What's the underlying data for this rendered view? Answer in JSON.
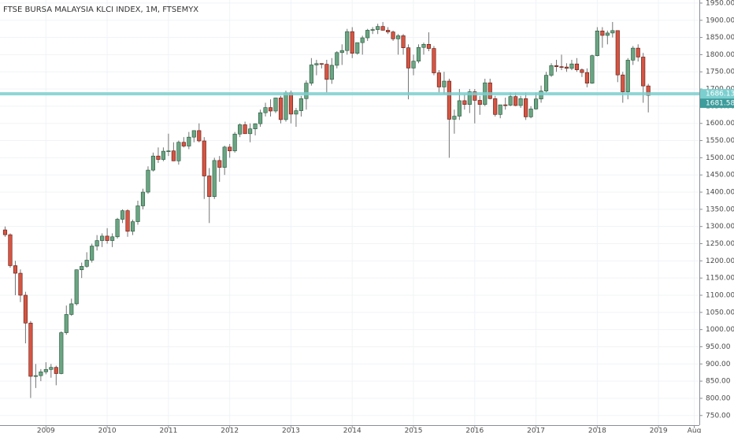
{
  "chart_data": {
    "type": "candlestick",
    "title": "FTSE BURSA MALAYSIA KLCI INDEX, 1M, FTSEMYX",
    "x": [
      "2008-05",
      "2008-06",
      "2008-07",
      "2008-08",
      "2008-09",
      "2008-10",
      "2008-11",
      "2008-12",
      "2009-01",
      "2009-02",
      "2009-03",
      "2009-04",
      "2009-05",
      "2009-06",
      "2009-07",
      "2009-08",
      "2009-09",
      "2009-10",
      "2009-11",
      "2009-12",
      "2010-01",
      "2010-02",
      "2010-03",
      "2010-04",
      "2010-05",
      "2010-06",
      "2010-07",
      "2010-08",
      "2010-09",
      "2010-10",
      "2010-11",
      "2010-12",
      "2011-01",
      "2011-02",
      "2011-03",
      "2011-04",
      "2011-05",
      "2011-06",
      "2011-07",
      "2011-08",
      "2011-09",
      "2011-10",
      "2011-11",
      "2011-12",
      "2012-01",
      "2012-02",
      "2012-03",
      "2012-04",
      "2012-05",
      "2012-06",
      "2012-07",
      "2012-08",
      "2012-09",
      "2012-10",
      "2012-11",
      "2012-12",
      "2013-01",
      "2013-02",
      "2013-03",
      "2013-04",
      "2013-05",
      "2013-06",
      "2013-07",
      "2013-08",
      "2013-09",
      "2013-10",
      "2013-11",
      "2013-12",
      "2014-01",
      "2014-02",
      "2014-03",
      "2014-04",
      "2014-05",
      "2014-06",
      "2014-07",
      "2014-08",
      "2014-09",
      "2014-10",
      "2014-11",
      "2014-12",
      "2015-01",
      "2015-02",
      "2015-03",
      "2015-04",
      "2015-05",
      "2015-06",
      "2015-07",
      "2015-08",
      "2015-09",
      "2015-10",
      "2015-11",
      "2015-12",
      "2016-01",
      "2016-02",
      "2016-03",
      "2016-04",
      "2016-05",
      "2016-06",
      "2016-07",
      "2016-08",
      "2016-09",
      "2016-10",
      "2016-11",
      "2016-12",
      "2017-01",
      "2017-02",
      "2017-03",
      "2017-04",
      "2017-05",
      "2017-06",
      "2017-07",
      "2017-08",
      "2017-09",
      "2017-10",
      "2017-11",
      "2017-12",
      "2018-01",
      "2018-02",
      "2018-03",
      "2018-04",
      "2018-05",
      "2018-06",
      "2018-07",
      "2018-08",
      "2018-09",
      "2018-10",
      "2018-11"
    ],
    "open": [
      1290,
      1276,
      1186,
      1164,
      1100,
      1019,
      864,
      866,
      877,
      884,
      890,
      872,
      991,
      1044,
      1075,
      1174,
      1184,
      1202,
      1243,
      1259,
      1272,
      1259,
      1270,
      1321,
      1346,
      1286,
      1314,
      1360,
      1400,
      1464,
      1505,
      1495,
      1519,
      1520,
      1491,
      1545,
      1534,
      1560,
      1579,
      1549,
      1447,
      1387,
      1492,
      1472,
      1531,
      1520,
      1569,
      1596,
      1570,
      1584,
      1599,
      1631,
      1646,
      1636,
      1674,
      1611,
      1689,
      1627,
      1637,
      1672,
      1717,
      1770,
      1774,
      1772,
      1728,
      1769,
      1806,
      1812,
      1867,
      1804,
      1835,
      1849,
      1871,
      1873,
      1882,
      1871,
      1866,
      1846,
      1855,
      1820,
      1761,
      1781,
      1821,
      1830,
      1818,
      1747,
      1706,
      1723,
      1612,
      1621,
      1666,
      1655,
      1692,
      1667,
      1655,
      1718,
      1672,
      1626,
      1654,
      1653,
      1678,
      1652,
      1672,
      1619,
      1642,
      1671,
      1694,
      1740,
      1768,
      1765,
      1764,
      1760,
      1773,
      1756,
      1748,
      1717,
      1797,
      1869,
      1856,
      1863,
      1870,
      1741,
      1692,
      1784,
      1819,
      1793,
      1709
    ],
    "high": [
      1300,
      1280,
      1200,
      1175,
      1110,
      1025,
      900,
      885,
      905,
      900,
      895,
      995,
      1070,
      1090,
      1175,
      1195,
      1225,
      1250,
      1275,
      1280,
      1295,
      1280,
      1325,
      1350,
      1350,
      1320,
      1375,
      1410,
      1475,
      1515,
      1530,
      1530,
      1570,
      1545,
      1550,
      1560,
      1575,
      1580,
      1600,
      1560,
      1470,
      1500,
      1505,
      1535,
      1540,
      1575,
      1600,
      1605,
      1600,
      1600,
      1640,
      1660,
      1670,
      1675,
      1680,
      1695,
      1695,
      1645,
      1680,
      1725,
      1790,
      1785,
      1775,
      1785,
      1790,
      1810,
      1830,
      1875,
      1880,
      1835,
      1855,
      1875,
      1880,
      1890,
      1895,
      1880,
      1870,
      1860,
      1860,
      1830,
      1800,
      1830,
      1835,
      1865,
      1825,
      1755,
      1750,
      1730,
      1640,
      1700,
      1685,
      1700,
      1700,
      1680,
      1730,
      1730,
      1680,
      1650,
      1675,
      1690,
      1690,
      1680,
      1690,
      1650,
      1690,
      1710,
      1750,
      1775,
      1785,
      1800,
      1775,
      1785,
      1790,
      1760,
      1760,
      1800,
      1880,
      1880,
      1870,
      1895,
      1870,
      1750,
      1790,
      1825,
      1830,
      1805,
      1715
    ],
    "low": [
      1270,
      1180,
      1100,
      1080,
      960,
      801,
      830,
      850,
      870,
      860,
      838,
      870,
      985,
      1040,
      1070,
      1150,
      1180,
      1195,
      1230,
      1240,
      1250,
      1240,
      1265,
      1310,
      1270,
      1275,
      1305,
      1350,
      1395,
      1460,
      1485,
      1490,
      1505,
      1490,
      1480,
      1530,
      1525,
      1545,
      1545,
      1380,
      1310,
      1380,
      1430,
      1450,
      1500,
      1515,
      1560,
      1570,
      1545,
      1565,
      1590,
      1620,
      1620,
      1630,
      1600,
      1605,
      1600,
      1590,
      1620,
      1640,
      1710,
      1740,
      1760,
      1690,
      1715,
      1760,
      1770,
      1800,
      1790,
      1800,
      1800,
      1840,
      1860,
      1860,
      1870,
      1860,
      1840,
      1800,
      1800,
      1670,
      1740,
      1775,
      1800,
      1810,
      1740,
      1690,
      1685,
      1500,
      1570,
      1610,
      1640,
      1630,
      1600,
      1625,
      1650,
      1670,
      1620,
      1615,
      1640,
      1650,
      1650,
      1645,
      1610,
      1615,
      1640,
      1660,
      1690,
      1735,
      1750,
      1755,
      1750,
      1755,
      1750,
      1735,
      1705,
      1715,
      1795,
      1820,
      1830,
      1850,
      1720,
      1660,
      1670,
      1770,
      1780,
      1660,
      1632
    ],
    "close": [
      1276,
      1186,
      1164,
      1100,
      1019,
      864,
      866,
      877,
      884,
      890,
      872,
      991,
      1044,
      1075,
      1174,
      1184,
      1202,
      1243,
      1259,
      1272,
      1259,
      1270,
      1321,
      1346,
      1286,
      1314,
      1360,
      1400,
      1464,
      1505,
      1495,
      1519,
      1520,
      1491,
      1545,
      1534,
      1560,
      1579,
      1549,
      1447,
      1387,
      1492,
      1472,
      1531,
      1520,
      1569,
      1596,
      1570,
      1584,
      1599,
      1631,
      1646,
      1636,
      1674,
      1611,
      1689,
      1627,
      1637,
      1672,
      1717,
      1770,
      1774,
      1772,
      1728,
      1769,
      1806,
      1812,
      1867,
      1804,
      1835,
      1849,
      1871,
      1873,
      1882,
      1871,
      1866,
      1846,
      1855,
      1820,
      1761,
      1781,
      1821,
      1830,
      1818,
      1747,
      1706,
      1723,
      1612,
      1621,
      1666,
      1655,
      1692,
      1667,
      1655,
      1718,
      1672,
      1626,
      1654,
      1653,
      1678,
      1652,
      1672,
      1619,
      1642,
      1671,
      1694,
      1740,
      1768,
      1765,
      1764,
      1760,
      1773,
      1756,
      1748,
      1717,
      1797,
      1869,
      1856,
      1863,
      1870,
      1741,
      1692,
      1784,
      1819,
      1793,
      1709,
      1681.58
    ],
    "up_color": "#6ba583",
    "up_border": "#225437",
    "down_color": "#d75442",
    "down_border": "#5b1a13",
    "horizontal_line": 1686.13,
    "horizontal_line_color": "#7ccfcf",
    "last_price": 1681.58,
    "last_price_color": "#3d9c9c",
    "ylim": [
      722,
      1959
    ],
    "yticks": [
      {
        "value": 750,
        "label": "750.00"
      },
      {
        "value": 800,
        "label": "800.00"
      },
      {
        "value": 850,
        "label": "850.00"
      },
      {
        "value": 900,
        "label": "900.00"
      },
      {
        "value": 950,
        "label": "950.00"
      },
      {
        "value": 1000,
        "label": "1000.00"
      },
      {
        "value": 1050,
        "label": "1050.00"
      },
      {
        "value": 1100,
        "label": "1100.00"
      },
      {
        "value": 1150,
        "label": "1150.00"
      },
      {
        "value": 1200,
        "label": "1200.00"
      },
      {
        "value": 1250,
        "label": "1250.00"
      },
      {
        "value": 1300,
        "label": "1300.00"
      },
      {
        "value": 1350,
        "label": "1350.00"
      },
      {
        "value": 1400,
        "label": "1400.00"
      },
      {
        "value": 1450,
        "label": "1450.00"
      },
      {
        "value": 1500,
        "label": "1500.00"
      },
      {
        "value": 1550,
        "label": "1550.00"
      },
      {
        "value": 1600,
        "label": "1600.00"
      },
      {
        "value": 1650,
        "label": "1650.00"
      },
      {
        "value": 1700,
        "label": "1700.00"
      },
      {
        "value": 1750,
        "label": "1750.00"
      },
      {
        "value": 1800,
        "label": "1800.00"
      },
      {
        "value": 1850,
        "label": "1850.00"
      },
      {
        "value": 1900,
        "label": "1900.00"
      },
      {
        "value": 1950,
        "label": "1950.00"
      }
    ],
    "xlim": [
      "2008-04",
      "2019-09"
    ],
    "xticks": [
      {
        "value": "2009-01",
        "label": "2009"
      },
      {
        "value": "2010-01",
        "label": "2010"
      },
      {
        "value": "2011-01",
        "label": "2011"
      },
      {
        "value": "2012-01",
        "label": "2012"
      },
      {
        "value": "2013-01",
        "label": "2013"
      },
      {
        "value": "2014-01",
        "label": "2014"
      },
      {
        "value": "2015-01",
        "label": "2015"
      },
      {
        "value": "2016-01",
        "label": "2016"
      },
      {
        "value": "2017-01",
        "label": "2017"
      },
      {
        "value": "2018-01",
        "label": "2018"
      },
      {
        "value": "2019-01",
        "label": "2019"
      },
      {
        "value": "2019-08",
        "label": "Aug"
      }
    ],
    "grid": true
  }
}
